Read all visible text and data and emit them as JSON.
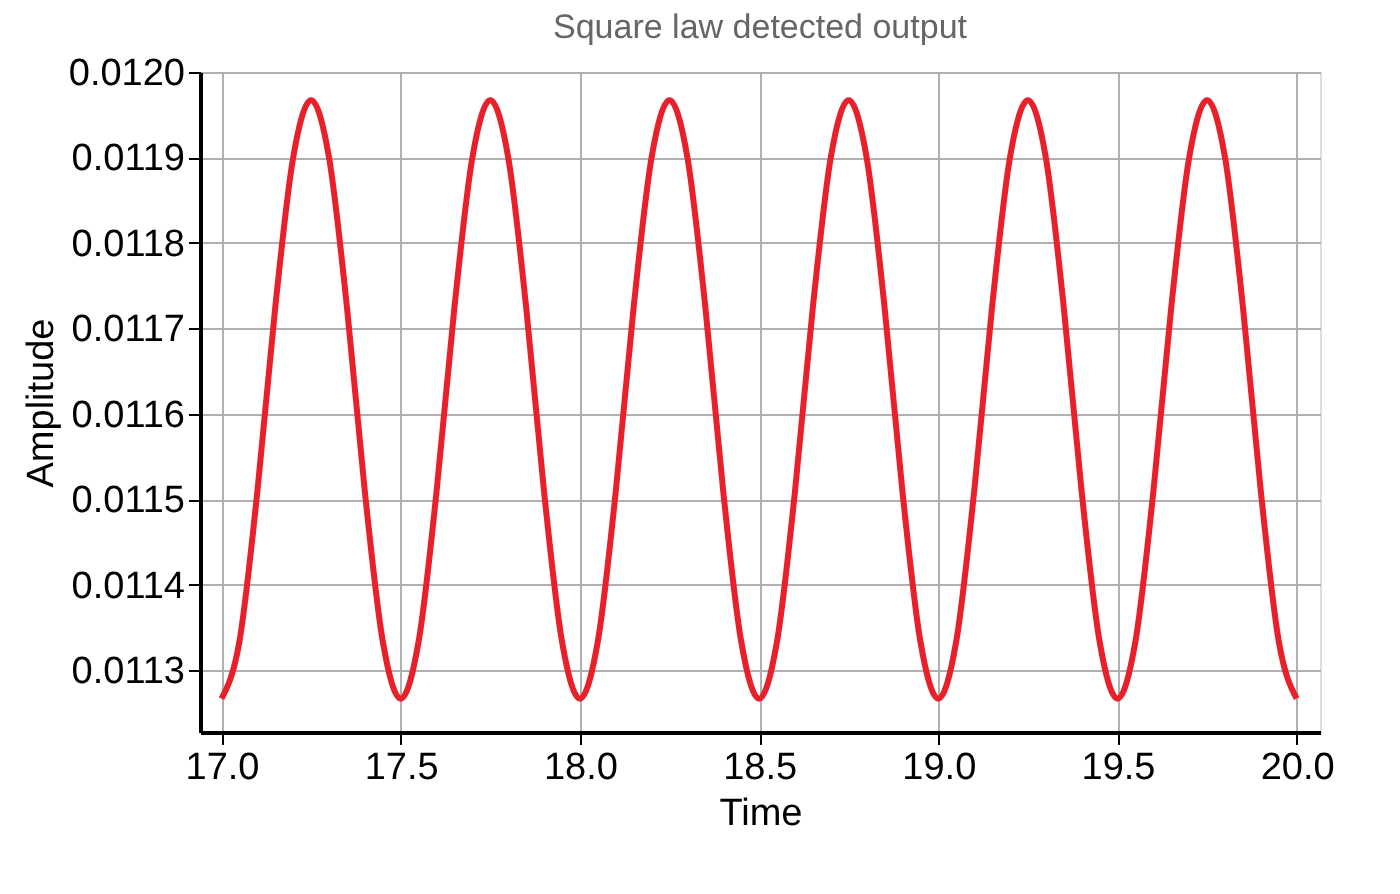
{
  "chart_data": {
    "type": "line",
    "title": "Square law detected output",
    "xlabel": "Time",
    "ylabel": "Amplitude",
    "xlim": [
      16.94,
      20.065
    ],
    "xticks": [
      {
        "value": 17,
        "label": "17.0"
      },
      17.5,
      {
        "value": 18,
        "label": "18.0"
      },
      18.5,
      {
        "value": 19,
        "label": "19.0"
      },
      19.5,
      {
        "value": 20,
        "label": "20.0"
      }
    ],
    "ylim": [
      0.011228,
      0.012
    ],
    "yticks": [
      0.0113,
      0.0114,
      0.0115,
      0.0116,
      0.0117,
      0.0118,
      0.0119,
      {
        "value": 0.012,
        "label": "0.0120"
      }
    ],
    "grid": true,
    "marker": "none",
    "line_style": "solid",
    "series": [
      {
        "color": "#e8202a",
        "x": [
          17.0,
          17.05,
          17.1,
          17.15,
          17.2,
          17.25,
          17.3,
          17.35,
          17.4,
          17.45,
          17.5,
          17.55,
          17.6,
          17.65,
          17.7,
          17.75,
          17.8,
          17.85,
          17.9,
          17.95,
          18.0,
          18.05,
          18.1,
          18.15,
          18.2,
          18.25,
          18.3,
          18.35,
          18.4,
          18.45,
          18.5,
          18.55,
          18.6,
          18.65,
          18.7,
          18.75,
          18.8,
          18.85,
          18.9,
          18.95,
          19.0,
          19.05,
          19.1,
          19.15,
          19.2,
          19.25,
          19.3,
          19.35,
          19.4,
          19.45,
          19.5,
          19.55,
          19.6,
          19.65,
          19.7,
          19.75,
          19.8,
          19.85,
          19.9,
          19.95,
          20.0
        ],
        "values": [
          0.011267,
          0.011334,
          0.011509,
          0.011725,
          0.0119,
          0.011967,
          0.0119,
          0.011725,
          0.011509,
          0.011334,
          0.011267,
          0.011334,
          0.011509,
          0.011725,
          0.0119,
          0.011967,
          0.0119,
          0.011725,
          0.011509,
          0.011334,
          0.011267,
          0.011334,
          0.011509,
          0.011725,
          0.0119,
          0.011967,
          0.0119,
          0.011725,
          0.011509,
          0.011334,
          0.011267,
          0.011334,
          0.011509,
          0.011725,
          0.0119,
          0.011967,
          0.0119,
          0.011725,
          0.011509,
          0.011334,
          0.011267,
          0.011334,
          0.011509,
          0.011725,
          0.0119,
          0.011967,
          0.0119,
          0.011725,
          0.011509,
          0.011334,
          0.011267,
          0.011334,
          0.011509,
          0.011725,
          0.0119,
          0.011967,
          0.0119,
          0.011725,
          0.011509,
          0.011334,
          0.011267
        ]
      }
    ]
  }
}
